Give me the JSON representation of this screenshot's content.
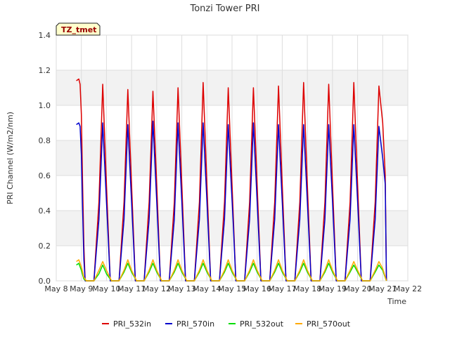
{
  "chart_data": {
    "type": "line",
    "title": "Tonzi Tower PRI",
    "xlabel": "Time",
    "ylabel": "PRI Channel (W/m2/nm)",
    "badge": "TZ_tmet",
    "xlim": [
      8,
      22
    ],
    "ylim": [
      0.0,
      1.4
    ],
    "x_ticks": [
      {
        "value": 8,
        "label": "May 8"
      },
      {
        "value": 9,
        "label": "May 9"
      },
      {
        "value": 10,
        "label": "May 10"
      },
      {
        "value": 11,
        "label": "May 11"
      },
      {
        "value": 12,
        "label": "May 12"
      },
      {
        "value": 13,
        "label": "May 13"
      },
      {
        "value": 14,
        "label": "May 14"
      },
      {
        "value": 15,
        "label": "May 15"
      },
      {
        "value": 16,
        "label": "May 16"
      },
      {
        "value": 17,
        "label": "May 17"
      },
      {
        "value": 18,
        "label": "May 18"
      },
      {
        "value": 19,
        "label": "May 19"
      },
      {
        "value": 20,
        "label": "May 20"
      },
      {
        "value": 21,
        "label": "May 21"
      },
      {
        "value": 22,
        "label": "May 22"
      }
    ],
    "y_ticks": [
      {
        "value": 0.0,
        "label": "0.0"
      },
      {
        "value": 0.2,
        "label": "0.2"
      },
      {
        "value": 0.4,
        "label": "0.4"
      },
      {
        "value": 0.6,
        "label": "0.6"
      },
      {
        "value": 0.8,
        "label": "0.8"
      },
      {
        "value": 1.0,
        "label": "1.0"
      },
      {
        "value": 1.2,
        "label": "1.2"
      },
      {
        "value": 1.4,
        "label": "1.4"
      }
    ],
    "grid": true,
    "legend_position": "bottom",
    "series": [
      {
        "name": "PRI_532in",
        "color": "#dd0000",
        "x": [
          8.8,
          8.9,
          8.95,
          9.0,
          9.05,
          9.1,
          9.15,
          9.2,
          9.3,
          9.5,
          9.7,
          9.85,
          10.0,
          10.15,
          10.3,
          10.5,
          10.7,
          10.85,
          11.0,
          11.15,
          11.3,
          11.5,
          11.7,
          11.85,
          12.0,
          12.15,
          12.3,
          12.5,
          12.7,
          12.85,
          13.0,
          13.15,
          13.3,
          13.5,
          13.7,
          13.85,
          14.0,
          14.15,
          14.3,
          14.5,
          14.7,
          14.85,
          15.0,
          15.15,
          15.3,
          15.5,
          15.7,
          15.85,
          16.0,
          16.15,
          16.3,
          16.5,
          16.7,
          16.85,
          17.0,
          17.15,
          17.3,
          17.5,
          17.7,
          17.85,
          18.0,
          18.15,
          18.3,
          18.5,
          18.7,
          18.85,
          19.0,
          19.15,
          19.3,
          19.5,
          19.7,
          19.85,
          20.0,
          20.15,
          20.3,
          20.5,
          20.7,
          20.85,
          21.0,
          21.1,
          21.15
        ],
        "y": [
          1.14,
          1.15,
          1.12,
          0.95,
          0.55,
          0.2,
          0.0,
          0.0,
          0.0,
          0.0,
          0.45,
          1.12,
          0.55,
          0.0,
          0.0,
          0.0,
          0.45,
          1.09,
          0.55,
          0.0,
          0.0,
          0.0,
          0.45,
          1.08,
          0.55,
          0.0,
          0.0,
          0.0,
          0.45,
          1.1,
          0.55,
          0.0,
          0.0,
          0.0,
          0.45,
          1.13,
          0.55,
          0.0,
          0.0,
          0.0,
          0.45,
          1.1,
          0.55,
          0.0,
          0.0,
          0.0,
          0.45,
          1.1,
          0.55,
          0.0,
          0.0,
          0.0,
          0.45,
          1.11,
          0.55,
          0.0,
          0.0,
          0.0,
          0.45,
          1.13,
          0.55,
          0.0,
          0.0,
          0.0,
          0.45,
          1.12,
          0.55,
          0.0,
          0.0,
          0.0,
          0.45,
          1.13,
          0.55,
          0.0,
          0.0,
          0.0,
          0.45,
          1.11,
          0.9,
          0.6,
          0.0
        ]
      },
      {
        "name": "PRI_570in",
        "color": "#0000cc",
        "x": [
          8.8,
          8.9,
          8.95,
          9.0,
          9.05,
          9.1,
          9.15,
          9.2,
          9.3,
          9.5,
          9.7,
          9.85,
          10.0,
          10.15,
          10.3,
          10.5,
          10.7,
          10.85,
          11.0,
          11.15,
          11.3,
          11.5,
          11.7,
          11.85,
          12.0,
          12.15,
          12.3,
          12.5,
          12.7,
          12.85,
          13.0,
          13.15,
          13.3,
          13.5,
          13.7,
          13.85,
          14.0,
          14.15,
          14.3,
          14.5,
          14.7,
          14.85,
          14.95,
          15.05,
          15.15,
          15.3,
          15.5,
          15.7,
          15.85,
          16.0,
          16.15,
          16.3,
          16.5,
          16.7,
          16.85,
          17.0,
          17.15,
          17.3,
          17.5,
          17.7,
          17.85,
          18.0,
          18.15,
          18.3,
          18.5,
          18.7,
          18.85,
          19.0,
          19.15,
          19.3,
          19.5,
          19.7,
          19.85,
          20.0,
          20.15,
          20.3,
          20.5,
          20.7,
          20.85,
          21.0,
          21.1,
          21.15
        ],
        "y": [
          0.89,
          0.9,
          0.88,
          0.72,
          0.4,
          0.12,
          0.0,
          0.0,
          0.0,
          0.0,
          0.35,
          0.9,
          0.45,
          0.0,
          0.0,
          0.0,
          0.35,
          0.89,
          0.45,
          0.0,
          0.0,
          0.0,
          0.35,
          0.91,
          0.45,
          0.0,
          0.0,
          0.0,
          0.35,
          0.9,
          0.45,
          0.0,
          0.0,
          0.0,
          0.35,
          0.9,
          0.45,
          0.0,
          0.0,
          0.0,
          0.35,
          0.89,
          0.6,
          0.32,
          0.0,
          0.0,
          0.0,
          0.35,
          0.9,
          0.45,
          0.0,
          0.0,
          0.0,
          0.35,
          0.89,
          0.45,
          0.0,
          0.0,
          0.0,
          0.35,
          0.89,
          0.45,
          0.0,
          0.0,
          0.0,
          0.35,
          0.89,
          0.45,
          0.0,
          0.0,
          0.0,
          0.35,
          0.89,
          0.45,
          0.0,
          0.0,
          0.0,
          0.35,
          0.88,
          0.7,
          0.55,
          0.0
        ]
      },
      {
        "name": "PRI_532out",
        "color": "#00dd00",
        "x": [
          8.8,
          8.9,
          9.0,
          9.1,
          9.2,
          9.5,
          9.7,
          9.85,
          10.0,
          10.2,
          10.5,
          10.7,
          10.85,
          11.0,
          11.2,
          11.5,
          11.7,
          11.85,
          12.0,
          12.2,
          12.5,
          12.7,
          12.85,
          13.0,
          13.2,
          13.5,
          13.7,
          13.85,
          14.0,
          14.2,
          14.5,
          14.7,
          14.85,
          15.0,
          15.2,
          15.5,
          15.7,
          15.85,
          16.0,
          16.2,
          16.5,
          16.7,
          16.85,
          17.0,
          17.2,
          17.5,
          17.7,
          17.85,
          18.0,
          18.2,
          18.5,
          18.7,
          18.85,
          19.0,
          19.2,
          19.5,
          19.7,
          19.85,
          20.0,
          20.2,
          20.5,
          20.7,
          20.85,
          21.0,
          21.15
        ],
        "y": [
          0.09,
          0.1,
          0.06,
          0.01,
          0.0,
          0.0,
          0.04,
          0.09,
          0.04,
          0.0,
          0.0,
          0.05,
          0.1,
          0.05,
          0.0,
          0.0,
          0.05,
          0.1,
          0.05,
          0.0,
          0.0,
          0.05,
          0.1,
          0.05,
          0.0,
          0.0,
          0.05,
          0.1,
          0.05,
          0.0,
          0.0,
          0.05,
          0.1,
          0.05,
          0.0,
          0.0,
          0.05,
          0.1,
          0.05,
          0.0,
          0.0,
          0.05,
          0.1,
          0.05,
          0.0,
          0.0,
          0.05,
          0.1,
          0.05,
          0.0,
          0.0,
          0.05,
          0.1,
          0.05,
          0.0,
          0.0,
          0.05,
          0.09,
          0.05,
          0.0,
          0.0,
          0.05,
          0.09,
          0.06,
          0.0
        ]
      },
      {
        "name": "PRI_570out",
        "color": "#ffaa00",
        "x": [
          8.8,
          8.9,
          9.0,
          9.1,
          9.2,
          9.5,
          9.7,
          9.85,
          10.0,
          10.2,
          10.5,
          10.7,
          10.85,
          11.0,
          11.2,
          11.5,
          11.7,
          11.85,
          12.0,
          12.2,
          12.5,
          12.7,
          12.85,
          13.0,
          13.2,
          13.5,
          13.7,
          13.85,
          14.0,
          14.2,
          14.5,
          14.7,
          14.85,
          15.0,
          15.2,
          15.5,
          15.7,
          15.85,
          16.0,
          16.2,
          16.5,
          16.7,
          16.85,
          17.0,
          17.2,
          17.5,
          17.7,
          17.85,
          18.0,
          18.2,
          18.5,
          18.7,
          18.85,
          19.0,
          19.2,
          19.5,
          19.7,
          19.85,
          20.0,
          20.2,
          20.5,
          20.7,
          20.85,
          21.0,
          21.15
        ],
        "y": [
          0.11,
          0.12,
          0.08,
          0.02,
          0.0,
          0.0,
          0.06,
          0.11,
          0.06,
          0.0,
          0.0,
          0.06,
          0.12,
          0.06,
          0.0,
          0.0,
          0.06,
          0.12,
          0.06,
          0.0,
          0.0,
          0.06,
          0.12,
          0.06,
          0.0,
          0.0,
          0.06,
          0.12,
          0.06,
          0.0,
          0.0,
          0.06,
          0.12,
          0.06,
          0.0,
          0.0,
          0.06,
          0.12,
          0.06,
          0.0,
          0.0,
          0.06,
          0.12,
          0.06,
          0.0,
          0.0,
          0.06,
          0.12,
          0.06,
          0.0,
          0.0,
          0.06,
          0.12,
          0.06,
          0.0,
          0.0,
          0.06,
          0.11,
          0.06,
          0.0,
          0.0,
          0.06,
          0.11,
          0.07,
          0.0
        ]
      }
    ]
  }
}
